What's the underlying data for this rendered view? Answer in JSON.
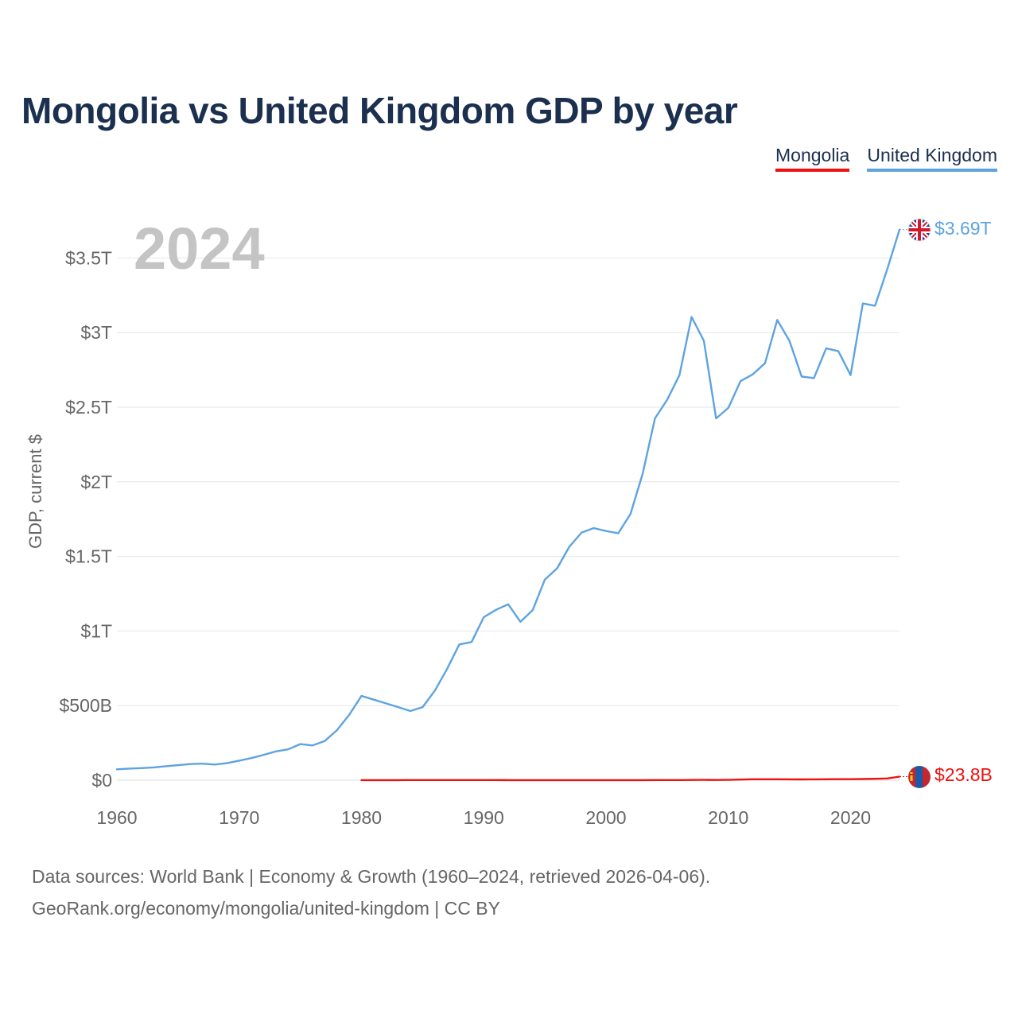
{
  "title": "Mongolia vs United Kingdom GDP by year",
  "legend": [
    {
      "name": "Mongolia",
      "color": "#ee1111"
    },
    {
      "name": "United Kingdom",
      "color": "#5ea3e0"
    }
  ],
  "year_label": "2024",
  "footer": {
    "line1": "Data sources: World Bank | Economy & Growth (1960–2024, retrieved 2026-04-06).",
    "line2": "GeoRank.org/economy/mongolia/united-kingdom | CC BY"
  },
  "chart_data": {
    "type": "line",
    "title": "Mongolia vs United Kingdom GDP by year",
    "ylabel": "GDP, current $",
    "xlabel": "",
    "xlim": [
      1960,
      2024
    ],
    "ylim": [
      0,
      3.69
    ],
    "unit": "trillion USD",
    "x_ticks": [
      {
        "value": 1960,
        "label": "1960"
      },
      {
        "value": 1970,
        "label": "1970"
      },
      {
        "value": 1980,
        "label": "1980"
      },
      {
        "value": 1990,
        "label": "1990"
      },
      {
        "value": 2000,
        "label": "2000"
      },
      {
        "value": 2010,
        "label": "2010"
      },
      {
        "value": 2020,
        "label": "2020"
      }
    ],
    "y_ticks": [
      {
        "value": 0,
        "label": "$0"
      },
      {
        "value": 0.5,
        "label": "$500B"
      },
      {
        "value": 1,
        "label": "$1T"
      },
      {
        "value": 1.5,
        "label": "$1.5T"
      },
      {
        "value": 2,
        "label": "$2T"
      },
      {
        "value": 2.5,
        "label": "$2.5T"
      },
      {
        "value": 3,
        "label": "$3T"
      },
      {
        "value": 3.5,
        "label": "$3.5T"
      }
    ],
    "grid": true,
    "legend_position": "top-right",
    "series": [
      {
        "name": "United Kingdom",
        "color": "#5ea3e0",
        "end_label": "$3.69T",
        "flag": "united-kingdom",
        "x": [
          1960,
          1961,
          1962,
          1963,
          1964,
          1965,
          1966,
          1967,
          1968,
          1969,
          1970,
          1971,
          1972,
          1973,
          1974,
          1975,
          1976,
          1977,
          1978,
          1979,
          1980,
          1981,
          1982,
          1983,
          1984,
          1985,
          1986,
          1987,
          1988,
          1989,
          1990,
          1991,
          1992,
          1993,
          1994,
          1995,
          1996,
          1997,
          1998,
          1999,
          2000,
          2001,
          2002,
          2003,
          2004,
          2005,
          2006,
          2007,
          2008,
          2009,
          2010,
          2011,
          2012,
          2013,
          2014,
          2015,
          2016,
          2017,
          2018,
          2019,
          2020,
          2021,
          2022,
          2023,
          2024
        ],
        "values": [
          0.073,
          0.078,
          0.081,
          0.086,
          0.094,
          0.101,
          0.108,
          0.111,
          0.105,
          0.114,
          0.131,
          0.148,
          0.17,
          0.193,
          0.207,
          0.242,
          0.233,
          0.263,
          0.336,
          0.438,
          0.565,
          0.54,
          0.515,
          0.49,
          0.464,
          0.49,
          0.601,
          0.745,
          0.91,
          0.926,
          1.093,
          1.142,
          1.179,
          1.062,
          1.14,
          1.345,
          1.42,
          1.565,
          1.66,
          1.69,
          1.67,
          1.655,
          1.785,
          2.055,
          2.425,
          2.55,
          2.715,
          3.105,
          2.945,
          2.425,
          2.495,
          2.675,
          2.72,
          2.795,
          3.085,
          2.945,
          2.705,
          2.695,
          2.895,
          2.875,
          2.715,
          3.195,
          3.18,
          3.425,
          3.69
        ]
      },
      {
        "name": "Mongolia",
        "color": "#ee1111",
        "end_label": "$23.8B",
        "flag": "mongolia",
        "x": [
          1980,
          1981,
          1982,
          1983,
          1984,
          1985,
          1986,
          1987,
          1988,
          1989,
          1990,
          1991,
          1992,
          1993,
          1994,
          1995,
          1996,
          1997,
          1998,
          1999,
          2000,
          2001,
          2002,
          2003,
          2004,
          2005,
          2006,
          2007,
          2008,
          2009,
          2010,
          2011,
          2012,
          2013,
          2014,
          2015,
          2016,
          2017,
          2018,
          2019,
          2020,
          2021,
          2022,
          2023,
          2024
        ],
        "values": [
          0.0005,
          0.0006,
          0.0007,
          0.0007,
          0.0008,
          0.0008,
          0.0009,
          0.0009,
          0.0009,
          0.001,
          0.0008,
          0.0008,
          0.0005,
          0.0004,
          0.0004,
          0.0005,
          0.0005,
          0.0005,
          0.0005,
          0.0005,
          0.0005,
          0.0005,
          0.0005,
          0.0006,
          0.0008,
          0.001,
          0.0013,
          0.0016,
          0.002,
          0.0016,
          0.0022,
          0.0043,
          0.0062,
          0.0065,
          0.0062,
          0.0059,
          0.0054,
          0.0057,
          0.0065,
          0.007,
          0.0067,
          0.0078,
          0.0095,
          0.0116,
          0.0238
        ]
      }
    ]
  }
}
